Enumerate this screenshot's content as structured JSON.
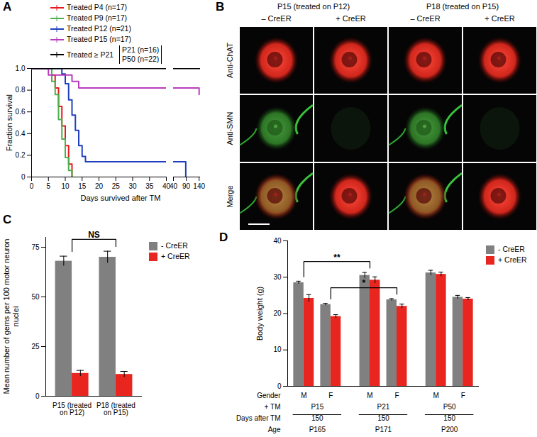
{
  "chart_data": [
    {
      "panel": "A",
      "type": "line",
      "xlabel": "Days survived after TM",
      "ylabel": "Fraction survival",
      "xlim": [
        0,
        40
      ],
      "xticks": [
        0,
        5,
        10,
        15,
        20,
        25,
        30,
        35,
        40
      ],
      "x2lim": [
        40,
        145
      ],
      "x2ticks": [
        40,
        90,
        140
      ],
      "ylim": [
        0,
        1
      ],
      "yticks": [
        0,
        0.2,
        0.4,
        0.6,
        0.8,
        {
          "value": 1,
          "label": "1.0"
        }
      ],
      "line_style": "step",
      "legend": "top",
      "series": [
        {
          "name": "Treated P4 (n=17)",
          "color": "#e41a1c",
          "x": [
            0,
            6,
            7,
            8,
            9,
            10,
            11,
            12
          ],
          "values": [
            1,
            0.94,
            0.82,
            0.65,
            0.47,
            0.29,
            0.12,
            0
          ]
        },
        {
          "name": "Treated P9 (n=17)",
          "color": "#4daf4a",
          "x": [
            0,
            6,
            7,
            8,
            9,
            10,
            11,
            12
          ],
          "values": [
            1,
            0.88,
            0.76,
            0.53,
            0.35,
            0.18,
            0.06,
            0
          ]
        },
        {
          "name": "Treated P12 (n=21)",
          "color": "#1f3fbf",
          "x": [
            0,
            9,
            10,
            11,
            12,
            13,
            14,
            15,
            16,
            88
          ],
          "values": [
            1,
            0.95,
            0.86,
            0.71,
            0.57,
            0.43,
            0.29,
            0.19,
            0.14,
            0
          ]
        },
        {
          "name": "Treated P15 (n=17)",
          "color": "#b83bbd",
          "x": [
            0,
            5,
            12,
            14,
            140
          ],
          "values": [
            1,
            0.94,
            0.88,
            0.82,
            0.76
          ]
        },
        {
          "name": "Treated ≥ P21",
          "subgroups": [
            "P21 (n=16)",
            "P50 (n=22)"
          ],
          "color": "#000000",
          "x": [
            0,
            145
          ],
          "values": [
            1,
            1
          ]
        }
      ]
    },
    {
      "panel": "B",
      "type": "image_grid",
      "groups": [
        {
          "label": "P15 (treated on P12)",
          "columns": [
            "– CreER",
            "+ CreER"
          ]
        },
        {
          "label": "P18 (treated on P15)",
          "columns": [
            "– CreER",
            "+ CreER"
          ]
        }
      ],
      "rows": [
        "Anti-ChAT",
        "Anti-SMN",
        "Merge"
      ]
    },
    {
      "panel": "C",
      "type": "bar",
      "ylabel": "Mean number of gems per 100 motor neuron nuclei",
      "categories": [
        "P15 (treated on P12)",
        "P18 (treated on P15)"
      ],
      "ylim": [
        0,
        80
      ],
      "yticks": [
        0,
        25,
        50,
        75
      ],
      "legend": "right",
      "series": [
        {
          "name": "- CreER",
          "color": "#808080",
          "values": [
            68,
            70
          ],
          "errors": [
            2.5,
            3
          ]
        },
        {
          "name": "+ CreER",
          "color": "#e8251f",
          "values": [
            11.5,
            11
          ],
          "errors": [
            1.5,
            1.5
          ]
        }
      ],
      "significance": [
        {
          "label": "NS",
          "between": [
            0,
            1
          ]
        }
      ]
    },
    {
      "panel": "D",
      "type": "bar",
      "ylabel": "Body weight (g)",
      "categories": [
        "M",
        "F",
        "M",
        "F",
        "M",
        "F"
      ],
      "ylim": [
        0,
        40
      ],
      "yticks": [
        0,
        10,
        20,
        30,
        40
      ],
      "legend": "right",
      "series": [
        {
          "name": "- CreER",
          "color": "#808080",
          "values": [
            28.5,
            22.5,
            30.5,
            23.8,
            31.2,
            24.5
          ],
          "errors": [
            0.4,
            0.3,
            0.8,
            0.3,
            0.7,
            0.5
          ]
        },
        {
          "name": "+ CreER",
          "color": "#e8251f",
          "values": [
            24.2,
            19.2,
            29.2,
            22.0,
            30.8,
            24.0
          ],
          "errors": [
            1.0,
            0.5,
            0.9,
            0.6,
            0.6,
            0.4
          ]
        }
      ],
      "table": {
        "row_labels": [
          "Gender",
          "+ TM",
          "Days after TM",
          "Age"
        ],
        "groups": [
          {
            "tm": "P15",
            "days": 150,
            "age": "P165"
          },
          {
            "tm": "P21",
            "days": 150,
            "age": "P171"
          },
          {
            "tm": "P50",
            "days": 150,
            "age": "P200"
          }
        ]
      },
      "significance": [
        {
          "label": "**",
          "between": [
            0,
            2
          ]
        },
        {
          "label": "*",
          "between": [
            1,
            3
          ]
        }
      ]
    }
  ]
}
